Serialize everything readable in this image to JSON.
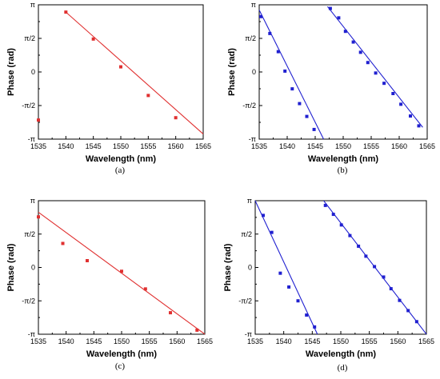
{
  "chart_data": [
    {
      "type": "scatter",
      "caption": "(a)",
      "xlabel": "Wavelength (nm)",
      "ylabel": "Phase (rad)",
      "xlim": [
        1535,
        1565
      ],
      "ylim": [
        -3.1416,
        3.1416
      ],
      "xticks": [
        1535,
        1540,
        1545,
        1550,
        1555,
        1560,
        1565
      ],
      "yticks": [
        {
          "value": -3.1416,
          "label": "-π"
        },
        {
          "value": -1.5708,
          "label": "-π/2"
        },
        {
          "value": 0,
          "label": "0"
        },
        {
          "value": 1.5708,
          "label": "π/2"
        },
        {
          "value": 3.1416,
          "label": "π"
        }
      ],
      "color": "#e03030",
      "series": [
        {
          "points": [
            [
              1535,
              -2.25
            ],
            [
              1540,
              2.8
            ],
            [
              1545,
              1.54
            ],
            [
              1550,
              0.24
            ],
            [
              1555,
              -1.1
            ],
            [
              1560,
              -2.14
            ]
          ],
          "fit": [
            [
              1540,
              2.8
            ],
            [
              1565,
              -2.9
            ]
          ]
        }
      ]
    },
    {
      "type": "scatter",
      "caption": "(b)",
      "xlabel": "Wavelength (nm)",
      "ylabel": "Phase (rad)",
      "xlim": [
        1535,
        1565
      ],
      "ylim": [
        -3.1416,
        3.1416
      ],
      "xticks": [
        1535,
        1540,
        1545,
        1550,
        1555,
        1560,
        1565
      ],
      "yticks": [
        {
          "value": -3.1416,
          "label": "-π"
        },
        {
          "value": -1.5708,
          "label": "-π/2"
        },
        {
          "value": 0,
          "label": "0"
        },
        {
          "value": 1.5708,
          "label": "π/2"
        },
        {
          "value": 3.1416,
          "label": "π"
        }
      ],
      "color": "#2020d0",
      "series": [
        {
          "points": [
            [
              1535.3,
              2.59
            ],
            [
              1536.9,
              1.8
            ],
            [
              1538.4,
              0.95
            ],
            [
              1539.6,
              0.04
            ],
            [
              1540.9,
              -0.79
            ],
            [
              1542.2,
              -1.48
            ],
            [
              1543.5,
              -2.08
            ],
            [
              1544.8,
              -2.69
            ]
          ],
          "fit": [
            [
              1535,
              2.9
            ],
            [
              1546.5,
              -3.14
            ]
          ]
        },
        {
          "points": [
            [
              1547.7,
              2.97
            ],
            [
              1549.2,
              2.53
            ],
            [
              1550.4,
              1.9
            ],
            [
              1551.8,
              1.4
            ],
            [
              1553.1,
              0.92
            ],
            [
              1554.4,
              0.44
            ],
            [
              1555.8,
              -0.05
            ],
            [
              1557.3,
              -0.53
            ],
            [
              1558.9,
              -1.01
            ],
            [
              1560.3,
              -1.51
            ],
            [
              1562.0,
              -2.06
            ],
            [
              1563.5,
              -2.52
            ]
          ],
          "fit": [
            [
              1547.2,
              3.06
            ],
            [
              1564.2,
              -2.59
            ]
          ]
        }
      ]
    },
    {
      "type": "scatter",
      "caption": "(c)",
      "xlabel": "Wavelength (nm)",
      "ylabel": "Phase (rad)",
      "xlim": [
        1535,
        1565
      ],
      "ylim": [
        -3.1416,
        3.1416
      ],
      "xticks": [
        1535,
        1540,
        1545,
        1550,
        1555,
        1560,
        1565
      ],
      "yticks": [
        {
          "value": -3.1416,
          "label": "-π"
        },
        {
          "value": -1.5708,
          "label": "-π/2"
        },
        {
          "value": 0,
          "label": "0"
        },
        {
          "value": 1.5708,
          "label": "π/2"
        },
        {
          "value": 3.1416,
          "label": "π"
        }
      ],
      "color": "#e03030",
      "series": [
        {
          "points": [
            [
              1535,
              2.38
            ],
            [
              1539.4,
              1.13
            ],
            [
              1543.8,
              0.32
            ],
            [
              1550,
              -0.18
            ],
            [
              1554.3,
              -1.01
            ],
            [
              1558.8,
              -2.13
            ],
            [
              1563.6,
              -2.95
            ]
          ],
          "fit": [
            [
              1535,
              2.6
            ],
            [
              1565,
              -3.14
            ]
          ]
        }
      ]
    },
    {
      "type": "scatter",
      "caption": "(d)",
      "xlabel": "Wavelength (nm)",
      "ylabel": "Phase (rad)",
      "xlim": [
        1535,
        1565
      ],
      "ylim": [
        -3.1416,
        3.1416
      ],
      "xticks": [
        1535,
        1540,
        1545,
        1550,
        1555,
        1560,
        1565
      ],
      "yticks": [
        {
          "value": -3.1416,
          "label": "-π"
        },
        {
          "value": -1.5708,
          "label": "-π/2"
        },
        {
          "value": 0,
          "label": "0"
        },
        {
          "value": 1.5708,
          "label": "π/2"
        },
        {
          "value": 3.1416,
          "label": "π"
        }
      ],
      "color": "#2020d0",
      "series": [
        {
          "points": [
            [
              1536.4,
              2.45
            ],
            [
              1537.9,
              1.65
            ],
            [
              1539.4,
              -0.27
            ],
            [
              1540.9,
              -0.92
            ],
            [
              1542.5,
              -1.57
            ],
            [
              1544.0,
              -2.24
            ],
            [
              1545.4,
              -2.8
            ]
          ],
          "fit": [
            [
              1535,
              3.14
            ],
            [
              1545.9,
              -3.14
            ]
          ]
        },
        {
          "points": [
            [
              1547.3,
              2.92
            ],
            [
              1548.7,
              2.5
            ],
            [
              1550.1,
              2.0
            ],
            [
              1551.6,
              1.5
            ],
            [
              1553.1,
              1.0
            ],
            [
              1554.4,
              0.53
            ],
            [
              1555.9,
              0.04
            ],
            [
              1557.5,
              -0.45
            ],
            [
              1558.8,
              -1.0
            ],
            [
              1560.3,
              -1.55
            ],
            [
              1561.8,
              -2.03
            ],
            [
              1563.3,
              -2.55
            ]
          ],
          "fit": [
            [
              1547.0,
              3.14
            ],
            [
              1565,
              -3.14
            ]
          ]
        }
      ]
    }
  ]
}
